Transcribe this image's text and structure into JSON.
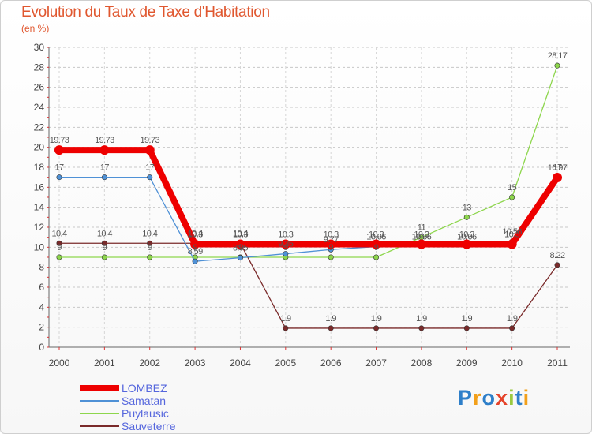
{
  "chart_data": {
    "type": "line",
    "title": "Evolution du Taux de Taxe d'Habitation",
    "subtitle": "(en %)",
    "xlabel": "",
    "ylabel": "",
    "x": [
      "2000",
      "2001",
      "2002",
      "2003",
      "2004",
      "2005",
      "2006",
      "2007",
      "2008",
      "2009",
      "2010",
      "2011"
    ],
    "ylim": [
      0,
      30
    ],
    "yticks": [
      0,
      2,
      4,
      6,
      8,
      10,
      12,
      14,
      16,
      18,
      20,
      22,
      24,
      26,
      28,
      30
    ],
    "grid": true,
    "legend_position": "bottom-left",
    "series": [
      {
        "name": "LOMBEZ",
        "color": "#ee0000",
        "values": [
          19.73,
          19.73,
          19.73,
          10.3,
          10.3,
          10.3,
          10.3,
          10.3,
          10.3,
          10.3,
          10.3,
          16.97
        ],
        "labels": [
          "19.73",
          "19.73",
          "19.73",
          "10.3",
          "10.3",
          "10.3",
          "10.3",
          "10.3",
          "10.3",
          "10.3",
          "10.3",
          "16.97"
        ]
      },
      {
        "name": "Samatan",
        "color": "#4f91d6",
        "values": [
          17,
          17,
          17,
          8.59,
          8.95,
          9.35,
          9.77,
          10.06,
          10.06,
          10.06,
          10.56,
          17
        ],
        "labels": [
          "17",
          "17",
          "17",
          "8.59",
          "8.95",
          "9.35",
          "9.77",
          "10.06",
          "10.06",
          "10.06",
          "10.56",
          "17"
        ]
      },
      {
        "name": "Puylausic",
        "color": "#8dd64c",
        "values": [
          9,
          9,
          9,
          9,
          9,
          9,
          9,
          9,
          11,
          13,
          15,
          28.17
        ],
        "labels": [
          "9",
          "9",
          "9",
          "9",
          "9",
          "9",
          "9",
          "9",
          "11",
          "13",
          "15",
          "28.17"
        ]
      },
      {
        "name": "Sauveterre",
        "color": "#7a2a2a",
        "values": [
          10.4,
          10.4,
          10.4,
          10.4,
          10.4,
          1.9,
          1.9,
          1.9,
          1.9,
          1.9,
          1.9,
          8.22
        ],
        "labels": [
          "10.4",
          "10.4",
          "10.4",
          "10.4",
          "10.4",
          "1.9",
          "1.9",
          "1.9",
          "1.9",
          "1.9",
          "1.9",
          "8.22"
        ]
      }
    ]
  },
  "logo": {
    "letters": [
      "P",
      "r",
      "o",
      "x",
      "i",
      "t",
      "i"
    ],
    "colors": [
      "#2e7fc9",
      "#f2a01b",
      "#2e7fc9",
      "#e5432a",
      "#9ac93e",
      "#2e7fc9",
      "#f2a01b"
    ]
  }
}
